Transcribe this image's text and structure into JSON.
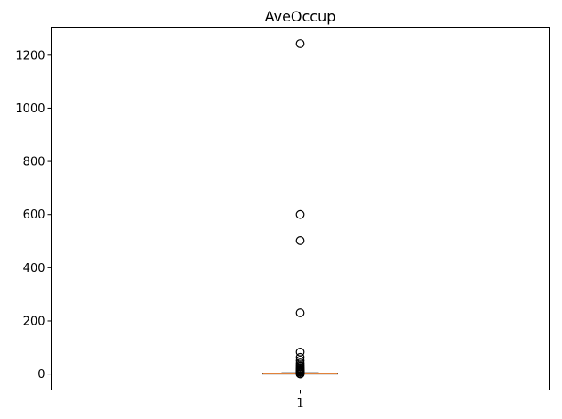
{
  "chart_data": {
    "type": "box",
    "title": "AveOccup",
    "xlabel": "",
    "ylabel": "",
    "categories": [
      "1"
    ],
    "ylim": [
      -60,
      1305
    ],
    "yticks": [
      0,
      200,
      400,
      600,
      800,
      1000,
      1200
    ],
    "ytick_labels": [
      "0",
      "200",
      "400",
      "600",
      "800",
      "1000",
      "1200"
    ],
    "box": {
      "whisker_low": 0.7,
      "q1": 2.4,
      "median": 2.8,
      "q3": 3.3,
      "whisker_high": 4.6
    },
    "outliers": [
      1243,
      600,
      502,
      230,
      83,
      63,
      51,
      42,
      35,
      30,
      25,
      21,
      18,
      15,
      13,
      11,
      9,
      8,
      7,
      6,
      5,
      0.5,
      0.3
    ],
    "colors": {
      "median": "#e2823a",
      "outline": "#000000",
      "grid": "none"
    },
    "grid": false
  }
}
